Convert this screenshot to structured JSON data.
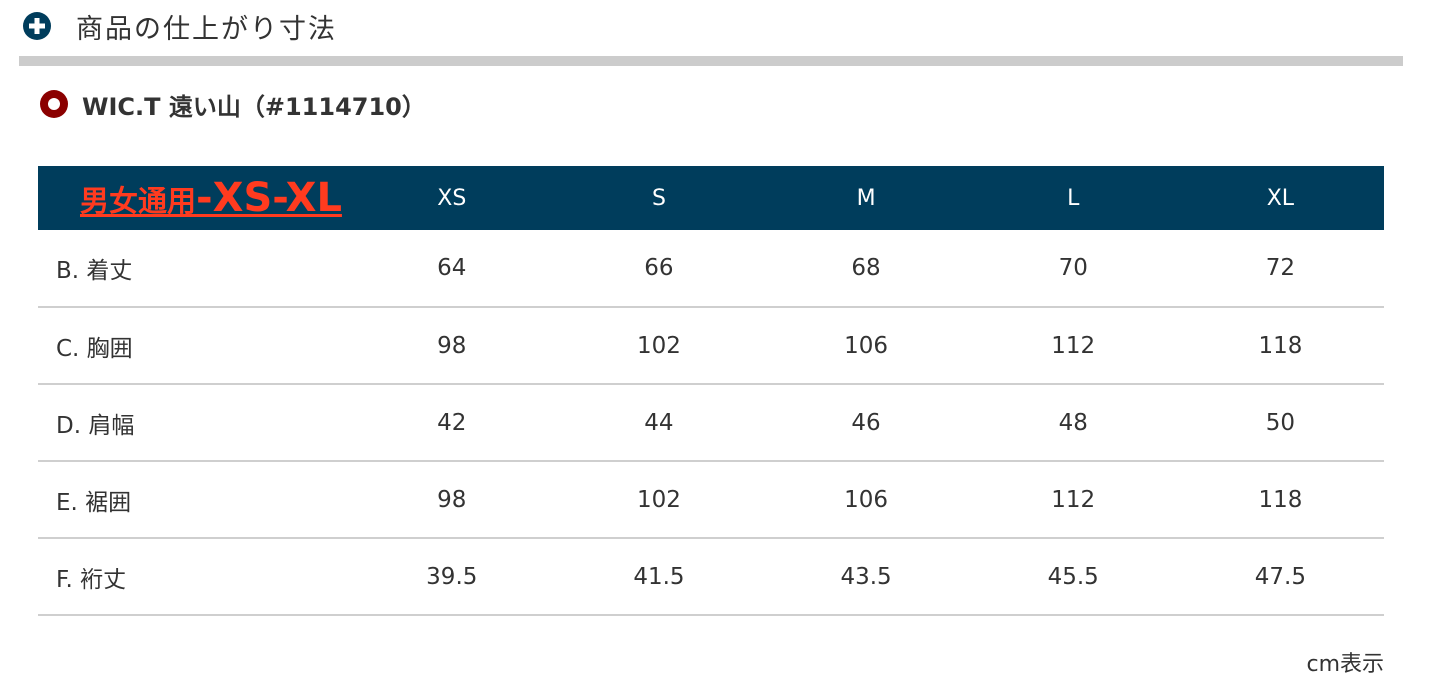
{
  "section": {
    "title": "商品の仕上がり寸法",
    "icon": "plus-circle-icon"
  },
  "product": {
    "title": "WIC.T 遠い山（#1114710）",
    "icon": "ring-icon"
  },
  "table": {
    "corner_label_jp": "男女通用",
    "corner_label_range": "-XS-XL",
    "sizes": [
      "XS",
      "S",
      "M",
      "L",
      "XL"
    ],
    "rows": [
      {
        "label": "B. 着丈",
        "values": [
          "64",
          "66",
          "68",
          "70",
          "72"
        ]
      },
      {
        "label": "C. 胸囲",
        "values": [
          "98",
          "102",
          "106",
          "112",
          "118"
        ]
      },
      {
        "label": "D. 肩幅",
        "values": [
          "42",
          "44",
          "46",
          "48",
          "50"
        ]
      },
      {
        "label": "E. 裾囲",
        "values": [
          "98",
          "102",
          "106",
          "112",
          "118"
        ]
      },
      {
        "label": "F. 裄丈",
        "values": [
          "39.5",
          "41.5",
          "43.5",
          "45.5",
          "47.5"
        ]
      }
    ]
  },
  "unit_note": "cm表示",
  "colors": {
    "header_bg": "#003d5c",
    "highlight_red": "#ff3b1f",
    "ring_red": "#8b0000",
    "divider_gray": "#cccccc"
  }
}
